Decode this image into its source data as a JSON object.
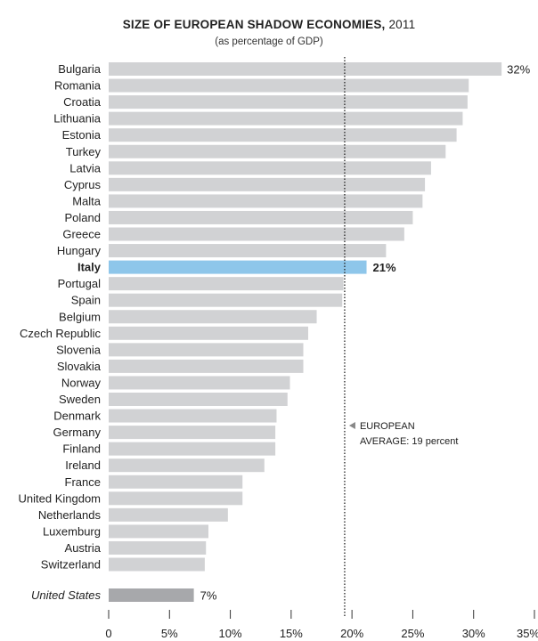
{
  "chart_data": {
    "type": "bar",
    "orientation": "horizontal",
    "title": "SIZE OF EUROPEAN SHADOW ECONOMIES,",
    "title_year": "2011",
    "subtitle": "(as percentage of GDP)",
    "xlabel": "",
    "ylabel": "",
    "xlim": [
      0,
      35
    ],
    "xticks": [
      0,
      5,
      10,
      15,
      20,
      25,
      30,
      35
    ],
    "xtick_labels": [
      "0",
      "5%",
      "10%",
      "15%",
      "20%",
      "25%",
      "30%",
      "35%"
    ],
    "categories": [
      "Bulgaria",
      "Romania",
      "Croatia",
      "Lithuania",
      "Estonia",
      "Turkey",
      "Latvia",
      "Cyprus",
      "Malta",
      "Poland",
      "Greece",
      "Hungary",
      "Italy",
      "Portugal",
      "Spain",
      "Belgium",
      "Czech Republic",
      "Slovenia",
      "Slovakia",
      "Norway",
      "Sweden",
      "Denmark",
      "Germany",
      "Finland",
      "Ireland",
      "France",
      "United Kingdom",
      "Netherlands",
      "Luxemburg",
      "Austria",
      "Switzerland"
    ],
    "values": [
      32.3,
      29.6,
      29.5,
      29.1,
      28.6,
      27.7,
      26.5,
      26.0,
      25.8,
      25.0,
      24.3,
      22.8,
      21.2,
      19.3,
      19.2,
      17.1,
      16.4,
      16.0,
      16.0,
      14.9,
      14.7,
      13.8,
      13.7,
      13.7,
      12.8,
      11.0,
      11.0,
      9.8,
      8.2,
      8.0,
      7.9
    ],
    "highlight": {
      "category": "Italy",
      "label": "21%",
      "color": "#8ec6ea"
    },
    "top_label": {
      "category": "Bulgaria",
      "label": "32%"
    },
    "comparison": {
      "category": "United States",
      "value": 7.0,
      "label": "7%",
      "color": "#a7a8ab"
    },
    "average": {
      "value": 19.4,
      "label_line1": "EUROPEAN",
      "label_line2": "AVERAGE: 19 percent"
    },
    "bar_color": "#d1d2d4",
    "grid": false
  }
}
